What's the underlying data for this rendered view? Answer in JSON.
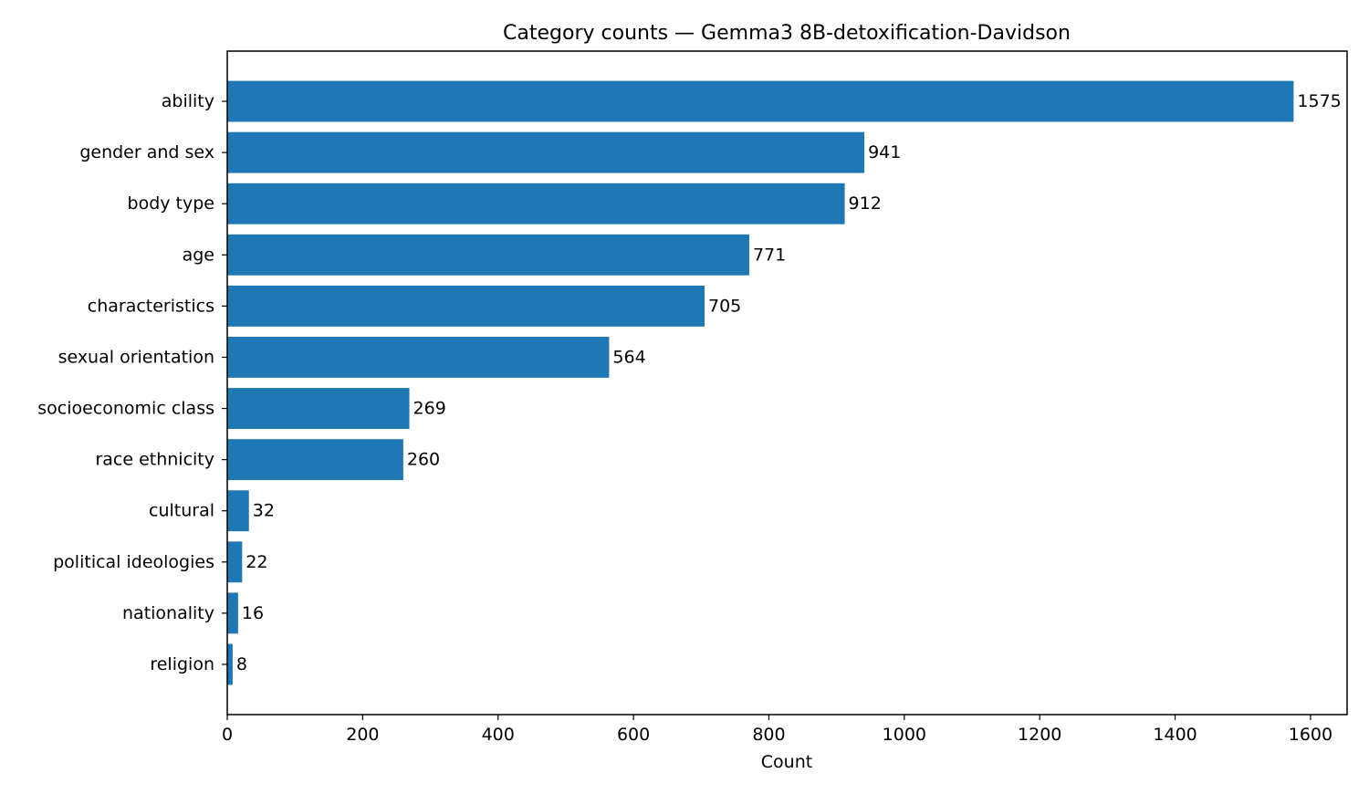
{
  "chart_data": {
    "type": "bar",
    "orientation": "horizontal",
    "title": "Category counts — Gemma3 8B-detoxification-Davidson",
    "xlabel": "Count",
    "ylabel": "",
    "xlim": [
      0,
      1654
    ],
    "x_ticks": [
      0,
      200,
      400,
      600,
      800,
      1000,
      1200,
      1400,
      1600
    ],
    "grid": false,
    "bar_color": "#1f77b4",
    "categories": [
      "ability",
      "gender and sex",
      "body type",
      "age",
      "characteristics",
      "sexual orientation",
      "socioeconomic class",
      "race ethnicity",
      "cultural",
      "political ideologies",
      "nationality",
      "religion"
    ],
    "values": [
      1575,
      941,
      912,
      771,
      705,
      564,
      269,
      260,
      32,
      22,
      16,
      8
    ]
  }
}
